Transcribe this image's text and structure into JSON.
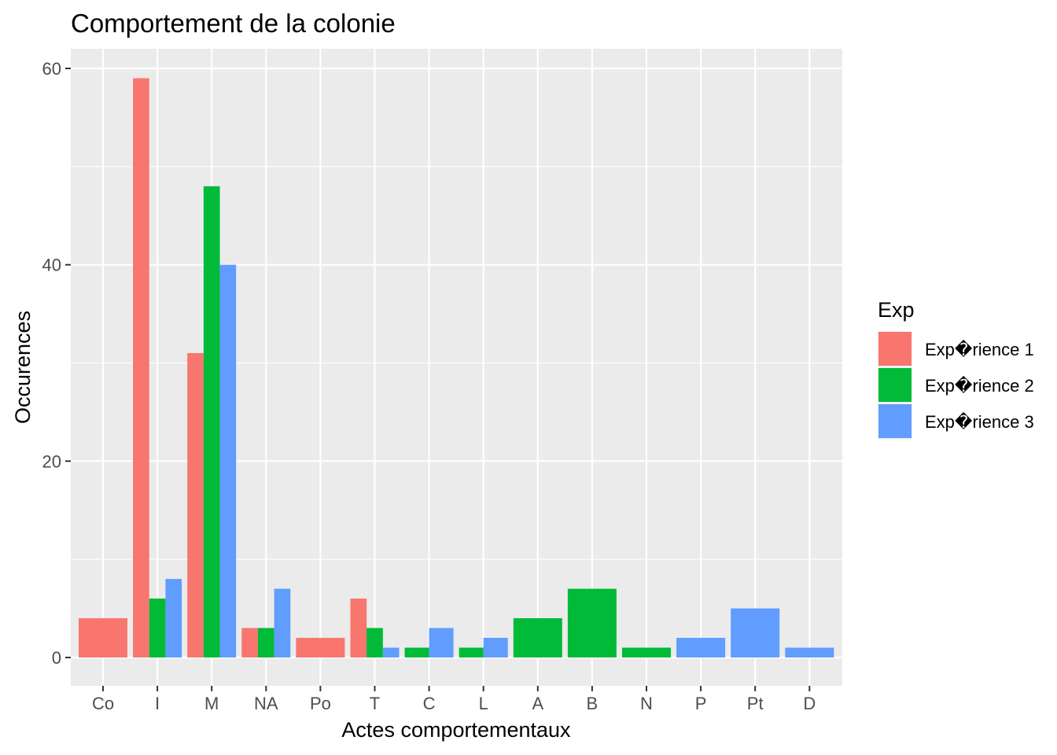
{
  "chart_data": {
    "type": "bar",
    "title": "Comportement de la colonie",
    "xlabel": "Actes comportementaux",
    "ylabel": "Occurences",
    "ylim": [
      -2.95,
      61.95
    ],
    "yticks": [
      0,
      20,
      40,
      60
    ],
    "grid": true,
    "legend_title": "Exp",
    "legend_position": "right",
    "categories": [
      "Co",
      "I",
      "M",
      "NA",
      "Po",
      "T",
      "C",
      "L",
      "A",
      "B",
      "N",
      "P",
      "Pt",
      "D"
    ],
    "series": [
      {
        "name": "Exp�rience 1",
        "color": "#F8766D",
        "values": [
          4,
          59,
          31,
          3,
          2,
          6,
          null,
          null,
          null,
          null,
          null,
          null,
          null,
          null
        ]
      },
      {
        "name": "Exp�rience 2",
        "color": "#00BA38",
        "values": [
          null,
          6,
          48,
          3,
          null,
          3,
          1,
          1,
          4,
          7,
          1,
          null,
          null,
          null
        ]
      },
      {
        "name": "Exp�rience 3",
        "color": "#619CFF",
        "values": [
          null,
          8,
          40,
          7,
          null,
          1,
          3,
          2,
          null,
          null,
          null,
          2,
          5,
          1
        ]
      }
    ]
  }
}
